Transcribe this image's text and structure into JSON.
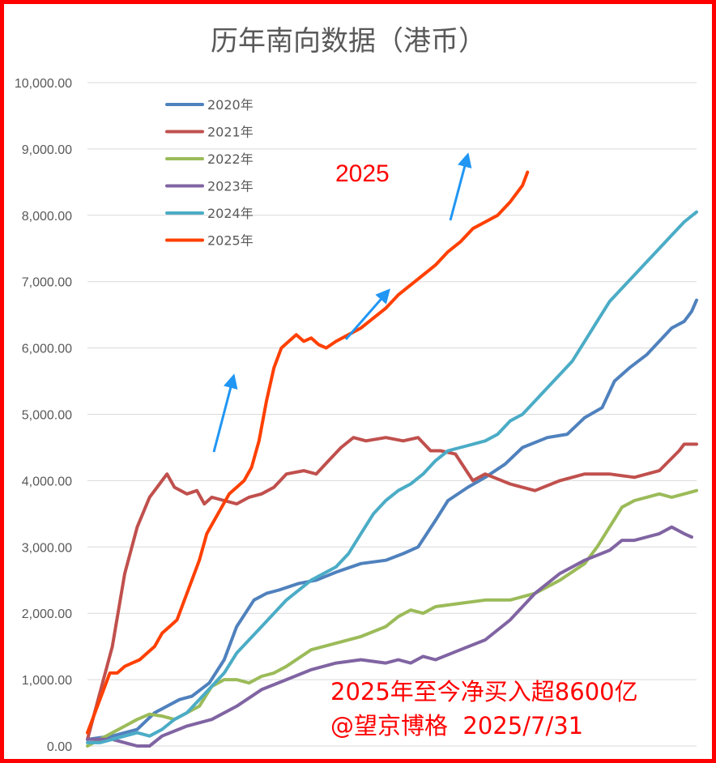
{
  "chart_data": {
    "type": "line",
    "title": "历年南向数据（港币）",
    "xlabel": "",
    "ylabel": "",
    "ylim": [
      0,
      10000
    ],
    "yticks": [
      "0.00",
      "1,000.00",
      "2,000.00",
      "3,000.00",
      "4,000.00",
      "5,000.00",
      "6,000.00",
      "7,000.00",
      "8,000.00",
      "9,000.00",
      "10,000.00"
    ],
    "x_points": 245,
    "grid": true,
    "legend_position": "top-left",
    "series": [
      {
        "name": "2020年",
        "color": "#4f81bd",
        "x": [
          0,
          10,
          20,
          27,
          37,
          42,
          49,
          55,
          60,
          67,
          72,
          77,
          85,
          92,
          100,
          110,
          120,
          127,
          133,
          140,
          145,
          153,
          160,
          168,
          175,
          185,
          193,
          200,
          207,
          212,
          218,
          225,
          235,
          240,
          243,
          245
        ],
        "values": [
          100,
          150,
          250,
          500,
          700,
          750,
          950,
          1300,
          1800,
          2200,
          2300,
          2350,
          2450,
          2500,
          2620,
          2750,
          2800,
          2900,
          3000,
          3400,
          3700,
          3900,
          4050,
          4250,
          4500,
          4650,
          4700,
          4950,
          5100,
          5500,
          5700,
          5900,
          6300,
          6400,
          6550,
          6720
        ]
      },
      {
        "name": "2021年",
        "color": "#c0504d",
        "x": [
          0,
          5,
          10,
          15,
          20,
          25,
          29,
          32,
          35,
          40,
          44,
          47,
          50,
          55,
          60,
          65,
          70,
          75,
          80,
          87,
          92,
          97,
          102,
          107,
          112,
          120,
          127,
          133,
          138,
          142,
          148,
          155,
          160,
          170,
          180,
          190,
          200,
          210,
          220,
          230,
          238,
          240,
          245
        ],
        "values": [
          100,
          800,
          1500,
          2600,
          3300,
          3750,
          3950,
          4100,
          3900,
          3800,
          3850,
          3650,
          3750,
          3700,
          3650,
          3750,
          3800,
          3900,
          4100,
          4150,
          4100,
          4300,
          4500,
          4650,
          4600,
          4650,
          4600,
          4650,
          4450,
          4450,
          4400,
          4000,
          4100,
          3950,
          3850,
          4000,
          4100,
          4100,
          4050,
          4150,
          4450,
          4550,
          4550
        ]
      },
      {
        "name": "2022年",
        "color": "#9bbb59",
        "x": [
          0,
          10,
          20,
          25,
          30,
          35,
          40,
          45,
          50,
          55,
          60,
          65,
          70,
          75,
          80,
          90,
          100,
          110,
          120,
          125,
          130,
          135,
          140,
          150,
          160,
          170,
          180,
          190,
          200,
          205,
          210,
          215,
          220,
          225,
          230,
          235,
          240,
          245
        ],
        "values": [
          0,
          200,
          400,
          480,
          450,
          400,
          500,
          600,
          900,
          1000,
          1000,
          950,
          1050,
          1100,
          1200,
          1450,
          1550,
          1650,
          1800,
          1950,
          2050,
          2000,
          2100,
          2150,
          2200,
          2200,
          2300,
          2500,
          2750,
          3000,
          3300,
          3600,
          3700,
          3750,
          3800,
          3750,
          3800,
          3850
        ]
      },
      {
        "name": "2023年",
        "color": "#8064a2",
        "x": [
          0,
          10,
          15,
          20,
          25,
          30,
          40,
          50,
          60,
          70,
          80,
          90,
          100,
          110,
          120,
          125,
          130,
          135,
          140,
          150,
          160,
          170,
          180,
          190,
          200,
          210,
          215,
          220,
          225,
          230,
          235,
          240,
          243
        ],
        "values": [
          100,
          100,
          50,
          0,
          0,
          150,
          300,
          400,
          600,
          850,
          1000,
          1150,
          1250,
          1300,
          1250,
          1300,
          1250,
          1350,
          1300,
          1450,
          1600,
          1900,
          2300,
          2600,
          2800,
          2950,
          3100,
          3100,
          3150,
          3200,
          3300,
          3200,
          3150
        ]
      },
      {
        "name": "2024年",
        "color": "#4bacc6",
        "x": [
          0,
          5,
          10,
          15,
          20,
          25,
          30,
          35,
          40,
          45,
          50,
          55,
          60,
          70,
          80,
          90,
          100,
          105,
          110,
          115,
          120,
          125,
          130,
          135,
          140,
          145,
          150,
          155,
          160,
          165,
          170,
          175,
          180,
          185,
          190,
          195,
          200,
          205,
          210,
          215,
          220,
          225,
          230,
          235,
          240,
          245
        ],
        "values": [
          50,
          50,
          100,
          150,
          200,
          150,
          250,
          400,
          500,
          700,
          900,
          1100,
          1400,
          1800,
          2200,
          2500,
          2700,
          2900,
          3200,
          3500,
          3700,
          3850,
          3950,
          4100,
          4300,
          4450,
          4500,
          4550,
          4600,
          4700,
          4900,
          5000,
          5200,
          5400,
          5600,
          5800,
          6100,
          6400,
          6700,
          6900,
          7100,
          7300,
          7500,
          7700,
          7900,
          8050
        ]
      },
      {
        "name": "2025年",
        "color": "#ff4000",
        "x": [
          0,
          3,
          6,
          9,
          12,
          15,
          18,
          21,
          24,
          27,
          30,
          33,
          36,
          39,
          42,
          45,
          48,
          51,
          54,
          57,
          60,
          63,
          66,
          69,
          72,
          75,
          78,
          81,
          84,
          87,
          90,
          93,
          96,
          100,
          105,
          110,
          115,
          120,
          125,
          130,
          135,
          140,
          145,
          150,
          155,
          160,
          165,
          170,
          175,
          177
        ],
        "values": [
          200,
          500,
          800,
          1100,
          1100,
          1200,
          1250,
          1300,
          1400,
          1500,
          1700,
          1800,
          1900,
          2200,
          2500,
          2800,
          3200,
          3400,
          3600,
          3800,
          3900,
          4000,
          4200,
          4600,
          5200,
          5700,
          6000,
          6100,
          6200,
          6100,
          6150,
          6050,
          6000,
          6100,
          6200,
          6300,
          6450,
          6600,
          6800,
          6950,
          7100,
          7250,
          7450,
          7600,
          7800,
          7900,
          8000,
          8200,
          8450,
          8650
        ]
      }
    ],
    "annotations": {
      "year_label": "2025",
      "summary_line1": "2025年至今净买入超8600亿",
      "summary_line2": "@望京博格  2025/7/31"
    },
    "arrow_color": "#2196f3",
    "annotation_color": "#ff0000"
  }
}
